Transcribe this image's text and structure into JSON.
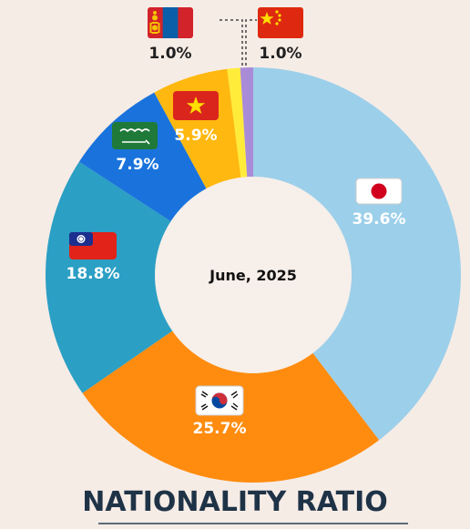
{
  "title": "NATIONALITY RATIO",
  "center_label": "June, 2025",
  "colors": {
    "japan": "#9ccfea",
    "korea": "#ff8c0f",
    "taiwan": "#2b9fc4",
    "saudi_arabia": "#1a73dc",
    "vietnam": "#ffb80f",
    "mongolia": "#ffec3a",
    "china": "#a98cd8"
  },
  "chart_data": {
    "type": "pie",
    "donut": true,
    "title": "NATIONALITY RATIO",
    "slices": [
      {
        "label": "39.6%",
        "value": 39.6,
        "flag": "japan-flag-icon"
      },
      {
        "label": "25.7%",
        "value": 25.7,
        "flag": "south-korea-flag-icon"
      },
      {
        "label": "18.8%",
        "value": 18.8,
        "flag": "taiwan-flag-icon"
      },
      {
        "label": "7.9%",
        "value": 7.9,
        "flag": "saudi-arabia-flag-icon"
      },
      {
        "label": "5.9%",
        "value": 5.9,
        "flag": "vietnam-flag-icon"
      },
      {
        "label": "1.0%",
        "value": 1.0,
        "flag": "mongolia-flag-icon"
      },
      {
        "label": "1.0%",
        "value": 1.0,
        "flag": "china-flag-icon"
      }
    ]
  }
}
